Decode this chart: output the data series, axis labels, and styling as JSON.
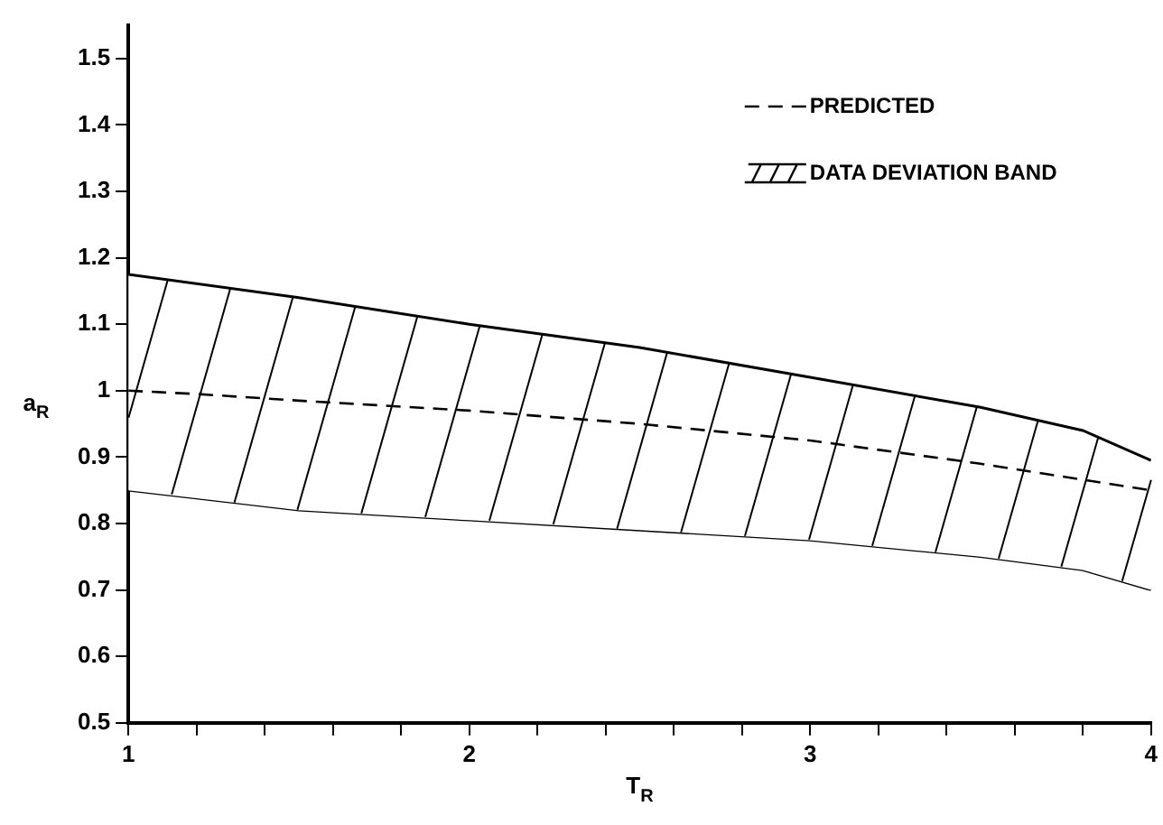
{
  "chart_data": {
    "type": "line",
    "xlabel": "T$_{R}$",
    "ylabel": "a$_{R}$",
    "xlim": [
      1,
      4
    ],
    "ylim": [
      0.5,
      1.55
    ],
    "xticks": [
      1,
      {
        "value": 1.2,
        "label": null
      },
      {
        "value": 1.4,
        "label": null
      },
      {
        "value": 1.6,
        "label": null
      },
      {
        "value": 1.8,
        "label": null
      },
      2,
      {
        "value": 2.2,
        "label": null
      },
      {
        "value": 2.4,
        "label": null
      },
      {
        "value": 2.6,
        "label": null
      },
      {
        "value": 2.8,
        "label": null
      },
      3,
      {
        "value": 3.2,
        "label": null
      },
      {
        "value": 3.4,
        "label": null
      },
      {
        "value": 3.6,
        "label": null
      },
      {
        "value": 3.8,
        "label": null
      },
      4
    ],
    "yticks": [
      0.5,
      0.6,
      0.7,
      0.8,
      0.9,
      1.0,
      1.1,
      1.2,
      1.3,
      1.4,
      1.5
    ],
    "grid": false,
    "legend": "top right",
    "marker": "none",
    "series": [
      {
        "name": "PREDICTED",
        "color": "#000000",
        "line_style": "dashed",
        "x": [
          1,
          1.2,
          1.5,
          2,
          2.5,
          3,
          3.5,
          4
        ],
        "values": [
          1.0,
          0.995,
          0.985,
          0.97,
          0.95,
          0.925,
          0.89,
          0.85
        ]
      },
      {
        "name": "DATA DEVIATION BAND",
        "type": "area",
        "color": "#000000",
        "x": [
          1,
          1.5,
          2,
          2.5,
          3,
          3.5,
          3.8,
          4
        ],
        "values": [
          1.175,
          1.14,
          1.1,
          1.065,
          1.02,
          0.975,
          0.94,
          0.895
        ]
      },
      {
        "type": "line",
        "color": "#000000",
        "line_style": "solid",
        "x": [
          1,
          1.5,
          2,
          2.5,
          3,
          3.5,
          3.8,
          4
        ],
        "values": [
          0.85,
          0.82,
          0.805,
          0.79,
          0.775,
          0.75,
          0.73,
          0.7
        ]
      }
    ]
  }
}
